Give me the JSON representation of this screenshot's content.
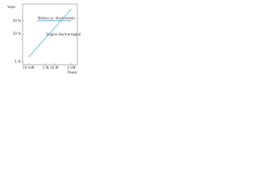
{
  "chart_data": {
    "type": "line",
    "y_label": "Vspe",
    "x_label": "Power",
    "xlog": true,
    "ylog": true,
    "grid": false,
    "xlim": [
      0.002,
      5000
    ],
    "xticks": [
      {
        "value": 0.01,
        "label": "10 mW"
      },
      {
        "value": 1,
        "label": "1 W"
      },
      {
        "value": 10,
        "label": "10 W"
      },
      {
        "value": 1000,
        "label": "1 kW"
      }
    ],
    "ylim": [
      0.8,
      120
    ],
    "yticks": [
      {
        "value": 1,
        "label": "1 %"
      },
      {
        "value": 10,
        "label": "10 %"
      },
      {
        "value": 30,
        "label": "30 %"
      }
    ],
    "series": [
      {
        "name": "Moteur pi. électrostatic",
        "color": "#4a90c8",
        "x": [
          0.1,
          1000
        ],
        "values": [
          30,
          30
        ]
      },
      {
        "name": "Engine électromagnétique",
        "color": "#3aa8d8",
        "x": [
          0.01,
          1000
        ],
        "values": [
          1.5,
          80
        ]
      }
    ]
  }
}
